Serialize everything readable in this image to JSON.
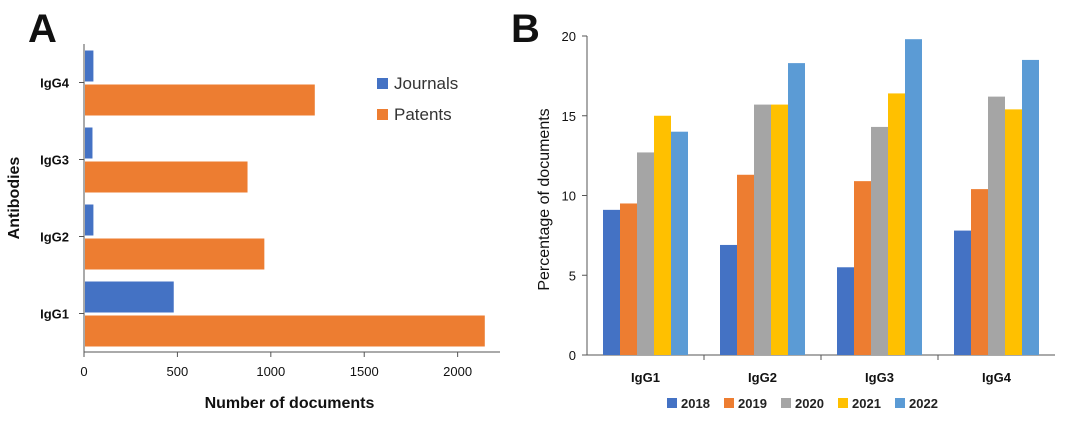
{
  "figure": {
    "panel_a_label": "A",
    "panel_b_label": "B"
  },
  "chart_data": [
    {
      "type": "bar",
      "orientation": "horizontal",
      "panel": "A",
      "categories": [
        "IgG1",
        "IgG2",
        "IgG3",
        "IgG4"
      ],
      "series": [
        {
          "name": "Journals",
          "color": "#4472C4",
          "values": [
            475,
            45,
            40,
            45
          ]
        },
        {
          "name": "Patents",
          "color": "#ED7D31",
          "values": [
            2140,
            960,
            870,
            1230
          ]
        }
      ],
      "xlabel": "Number of documents",
      "ylabel": "Antibodies",
      "xlim": [
        0,
        2200
      ],
      "xticks": [
        "0",
        "500",
        "1000",
        "1500",
        "2000"
      ],
      "xtick_values": [
        0,
        500,
        1000,
        1500,
        2000
      ],
      "legend_placement": "top-right"
    },
    {
      "type": "bar",
      "orientation": "vertical",
      "panel": "B",
      "categories": [
        "IgG1",
        "IgG2",
        "IgG3",
        "IgG4"
      ],
      "series": [
        {
          "name": "2018",
          "color": "#4472C4",
          "values": [
            9.1,
            6.9,
            5.5,
            7.8
          ]
        },
        {
          "name": "2019",
          "color": "#ED7D31",
          "values": [
            9.5,
            11.3,
            10.9,
            10.4
          ]
        },
        {
          "name": "2020",
          "color": "#A5A5A5",
          "values": [
            12.7,
            15.7,
            14.3,
            16.2
          ]
        },
        {
          "name": "2021",
          "color": "#FFC000",
          "values": [
            15.0,
            15.7,
            16.4,
            15.4
          ]
        },
        {
          "name": "2022",
          "color": "#5B9BD5",
          "values": [
            14.0,
            18.3,
            19.8,
            18.5
          ]
        }
      ],
      "ylabel": "Percentage of documents",
      "xlabel": "",
      "ylim": [
        0,
        20
      ],
      "yticks": [
        "0",
        "5",
        "10",
        "15",
        "20"
      ],
      "ytick_values": [
        0,
        5,
        10,
        15,
        20
      ],
      "legend_placement": "bottom"
    }
  ]
}
